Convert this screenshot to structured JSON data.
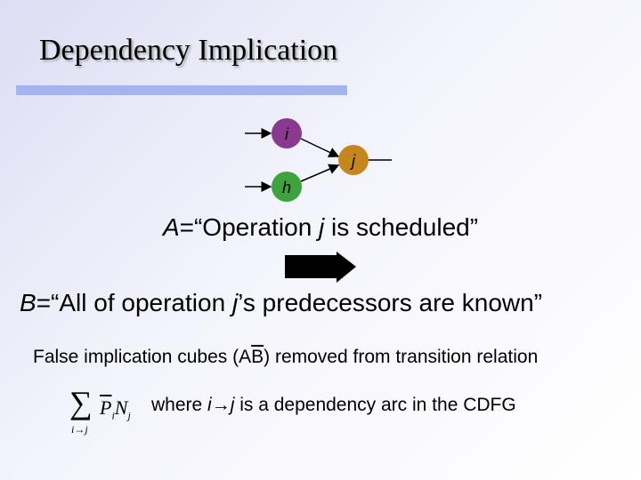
{
  "title": "Dependency Implication",
  "graph": {
    "nodes": [
      {
        "label": "i"
      },
      {
        "label": "j"
      },
      {
        "label": "h"
      }
    ]
  },
  "statement_a": [
    "A",
    "=“Operation ",
    "j",
    " is scheduled”"
  ],
  "statement_b": [
    "B",
    "=“All of operation ",
    "j",
    "’s predecessors are known”"
  ],
  "note": [
    "False implication cubes (",
    "A",
    "B",
    ") removed from transition relation"
  ],
  "formula": {
    "sum": "∑",
    "sub": [
      "i",
      "→",
      "j"
    ],
    "terms": [
      "P",
      "i",
      "N",
      "j"
    ]
  },
  "where": [
    "where ",
    "i",
    "→",
    "j",
    " is a dependency arc in the CDFG"
  ]
}
